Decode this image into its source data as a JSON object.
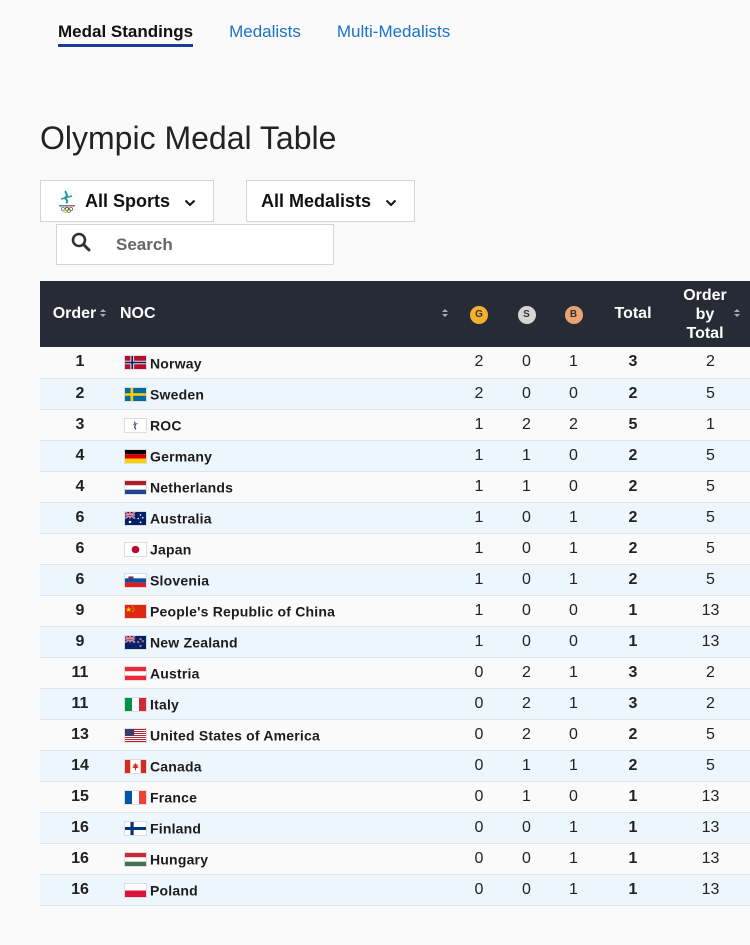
{
  "tabs": [
    {
      "label": "Medal Standings",
      "active": true
    },
    {
      "label": "Medalists",
      "active": false
    },
    {
      "label": "Multi-Medalists",
      "active": false
    }
  ],
  "page_title": "Olympic Medal Table",
  "filters": {
    "sports_label": "All Sports",
    "medalists_label": "All Medalists",
    "sports_icon": "beijing-2022-emblem-icon"
  },
  "search": {
    "placeholder": "Search",
    "value": ""
  },
  "table": {
    "headers": {
      "order": "Order",
      "noc": "NOC",
      "gold": "G",
      "silver": "S",
      "bronze": "B",
      "total": "Total",
      "order_by_total": "Order by Total"
    },
    "medal_colors": {
      "gold": "#f2b22e",
      "silver": "#d5d5d5",
      "bronze": "#e9a46f"
    },
    "rows": [
      {
        "order": "1",
        "noc": "Norway",
        "flag": "norway",
        "gold": "2",
        "silver": "0",
        "bronze": "1",
        "total": "3",
        "order_by_total": "2"
      },
      {
        "order": "2",
        "noc": "Sweden",
        "flag": "sweden",
        "gold": "2",
        "silver": "0",
        "bronze": "0",
        "total": "2",
        "order_by_total": "5"
      },
      {
        "order": "3",
        "noc": "ROC",
        "flag": "roc",
        "gold": "1",
        "silver": "2",
        "bronze": "2",
        "total": "5",
        "order_by_total": "1"
      },
      {
        "order": "4",
        "noc": "Germany",
        "flag": "germany",
        "gold": "1",
        "silver": "1",
        "bronze": "0",
        "total": "2",
        "order_by_total": "5"
      },
      {
        "order": "4",
        "noc": "Netherlands",
        "flag": "netherlands",
        "gold": "1",
        "silver": "1",
        "bronze": "0",
        "total": "2",
        "order_by_total": "5"
      },
      {
        "order": "6",
        "noc": "Australia",
        "flag": "australia",
        "gold": "1",
        "silver": "0",
        "bronze": "1",
        "total": "2",
        "order_by_total": "5"
      },
      {
        "order": "6",
        "noc": "Japan",
        "flag": "japan",
        "gold": "1",
        "silver": "0",
        "bronze": "1",
        "total": "2",
        "order_by_total": "5"
      },
      {
        "order": "6",
        "noc": "Slovenia",
        "flag": "slovenia",
        "gold": "1",
        "silver": "0",
        "bronze": "1",
        "total": "2",
        "order_by_total": "5"
      },
      {
        "order": "9",
        "noc": "People's Republic of China",
        "flag": "china",
        "gold": "1",
        "silver": "0",
        "bronze": "0",
        "total": "1",
        "order_by_total": "13"
      },
      {
        "order": "9",
        "noc": "New Zealand",
        "flag": "newzealand",
        "gold": "1",
        "silver": "0",
        "bronze": "0",
        "total": "1",
        "order_by_total": "13"
      },
      {
        "order": "11",
        "noc": "Austria",
        "flag": "austria",
        "gold": "0",
        "silver": "2",
        "bronze": "1",
        "total": "3",
        "order_by_total": "2"
      },
      {
        "order": "11",
        "noc": "Italy",
        "flag": "italy",
        "gold": "0",
        "silver": "2",
        "bronze": "1",
        "total": "3",
        "order_by_total": "2"
      },
      {
        "order": "13",
        "noc": "United States of America",
        "flag": "usa",
        "gold": "0",
        "silver": "2",
        "bronze": "0",
        "total": "2",
        "order_by_total": "5"
      },
      {
        "order": "14",
        "noc": "Canada",
        "flag": "canada",
        "gold": "0",
        "silver": "1",
        "bronze": "1",
        "total": "2",
        "order_by_total": "5"
      },
      {
        "order": "15",
        "noc": "France",
        "flag": "france",
        "gold": "0",
        "silver": "1",
        "bronze": "0",
        "total": "1",
        "order_by_total": "13"
      },
      {
        "order": "16",
        "noc": "Finland",
        "flag": "finland",
        "gold": "0",
        "silver": "0",
        "bronze": "1",
        "total": "1",
        "order_by_total": "13"
      },
      {
        "order": "16",
        "noc": "Hungary",
        "flag": "hungary",
        "gold": "0",
        "silver": "0",
        "bronze": "1",
        "total": "1",
        "order_by_total": "13"
      },
      {
        "order": "16",
        "noc": "Poland",
        "flag": "poland",
        "gold": "0",
        "silver": "0",
        "bronze": "1",
        "total": "1",
        "order_by_total": "13"
      }
    ]
  }
}
